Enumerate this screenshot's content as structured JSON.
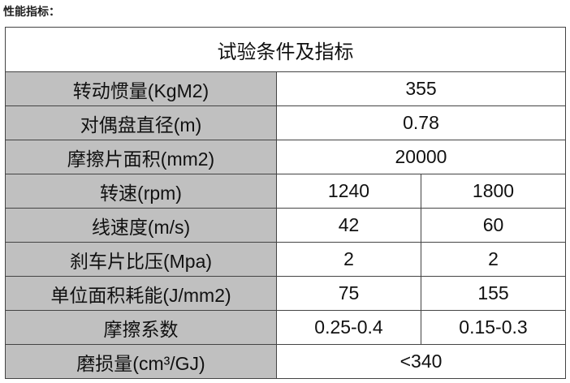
{
  "heading": "性能指标：",
  "table": {
    "title": "试验条件及指标",
    "rows": [
      {
        "label": "转动惯量(KgM2)",
        "values": [
          "355"
        ]
      },
      {
        "label": "对偶盘直径(m)",
        "values": [
          "0.78"
        ]
      },
      {
        "label": "摩擦片面积(mm2)",
        "values": [
          "20000"
        ]
      },
      {
        "label": "转速(rpm)",
        "values": [
          "1240",
          "1800"
        ]
      },
      {
        "label": "线速度(m/s)",
        "values": [
          "42",
          "60"
        ]
      },
      {
        "label": "刹车片比压(Mpa)",
        "values": [
          "2",
          "2"
        ]
      },
      {
        "label": "单位面积耗能(J/mm2)",
        "values": [
          "75",
          "155"
        ]
      },
      {
        "label": "摩擦系数",
        "values": [
          "0.25-0.4",
          "0.15-0.3"
        ]
      },
      {
        "label": "磨损量(cm³/GJ)",
        "values": [
          "<340"
        ]
      }
    ]
  },
  "colors": {
    "label_bg": "#c0c0c0",
    "border": "#444444"
  }
}
